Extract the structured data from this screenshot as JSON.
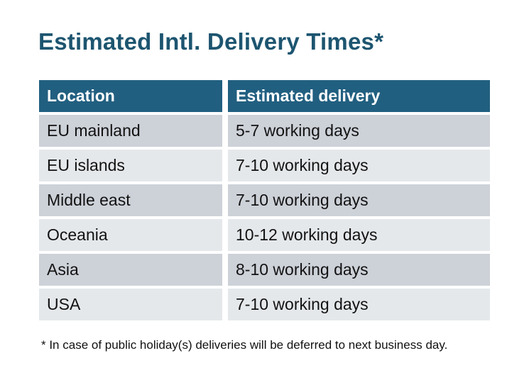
{
  "title": "Estimated Intl. Delivery Times*",
  "table": {
    "headers": [
      "Location",
      "Estimated delivery"
    ],
    "rows": [
      [
        "EU mainland",
        "5-7 working days"
      ],
      [
        "EU islands",
        "7-10 working days"
      ],
      [
        "Middle east",
        "7-10 working days"
      ],
      [
        "Oceania",
        "10-12 working days"
      ],
      [
        "Asia",
        "8-10 working days"
      ],
      [
        "USA",
        "7-10 working days"
      ]
    ]
  },
  "footnote": "* In case of public holiday(s) deliveries will be deferred to next business day.",
  "colors": {
    "title_text": "#1d5570",
    "header_bg": "#215f80",
    "header_text": "#ffffff",
    "row_odd_bg": "#cdd1d8",
    "row_even_bg": "#e5e8eb",
    "cell_text": "#121212",
    "background": "#ffffff"
  }
}
